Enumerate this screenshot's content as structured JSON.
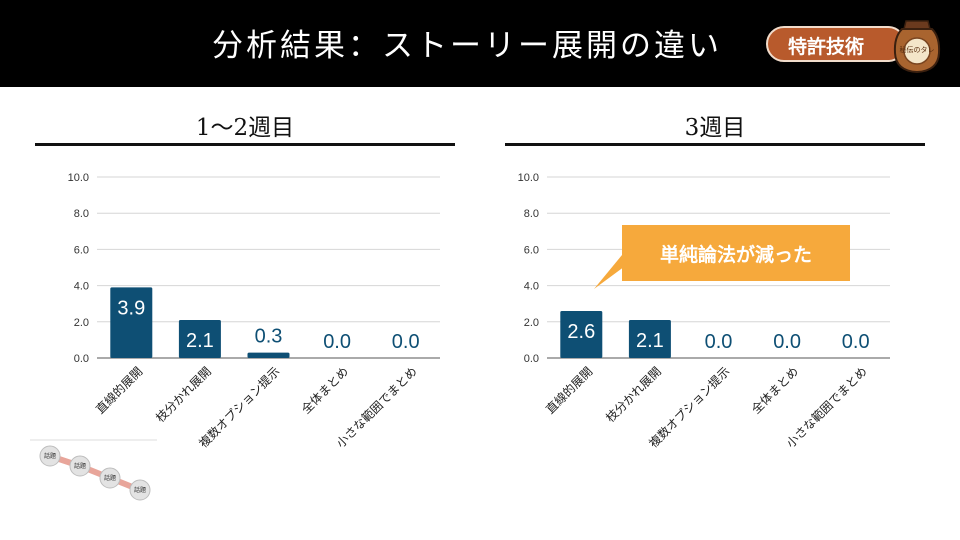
{
  "header": {
    "title": "分析結果：ストーリー展開の違い",
    "badge": "特許技術",
    "jar_label": "秘伝のタレ"
  },
  "panels": [
    {
      "title": "1～2週目"
    },
    {
      "title": "3週目"
    }
  ],
  "callout": {
    "text": "単純論法が減った"
  },
  "flow_diagram": {
    "nodes": [
      "話題",
      "話題",
      "話題",
      "話題"
    ]
  },
  "colors": {
    "bar": "#0e4f74",
    "header_bg": "#000000",
    "badge": "#b85a2c",
    "callout": "#f6a93c"
  },
  "chart_data": [
    {
      "type": "bar",
      "title": "1～2週目",
      "categories": [
        "直線的展開",
        "枝分かれ展開",
        "複数オプション提示",
        "全体まとめ",
        "小さな範囲でまとめ"
      ],
      "values": [
        3.9,
        2.1,
        0.3,
        0.0,
        0.0
      ],
      "value_labels": [
        "3.9",
        "2.1",
        "0.3",
        "0.0",
        "0.0"
      ],
      "y_ticks": [
        "0.0",
        "2.0",
        "4.0",
        "6.0",
        "8.0",
        "10.0"
      ],
      "ylim": [
        0,
        10
      ],
      "grid": true
    },
    {
      "type": "bar",
      "title": "3週目",
      "categories": [
        "直線的展開",
        "枝分かれ展開",
        "複数オプション提示",
        "全体まとめ",
        "小さな範囲でまとめ"
      ],
      "values": [
        2.6,
        2.1,
        0.0,
        0.0,
        0.0
      ],
      "value_labels": [
        "2.6",
        "2.1",
        "0.0",
        "0.0",
        "0.0"
      ],
      "y_ticks": [
        "0.0",
        "2.0",
        "4.0",
        "6.0",
        "8.0",
        "10.0"
      ],
      "ylim": [
        0,
        10
      ],
      "grid": true
    }
  ]
}
